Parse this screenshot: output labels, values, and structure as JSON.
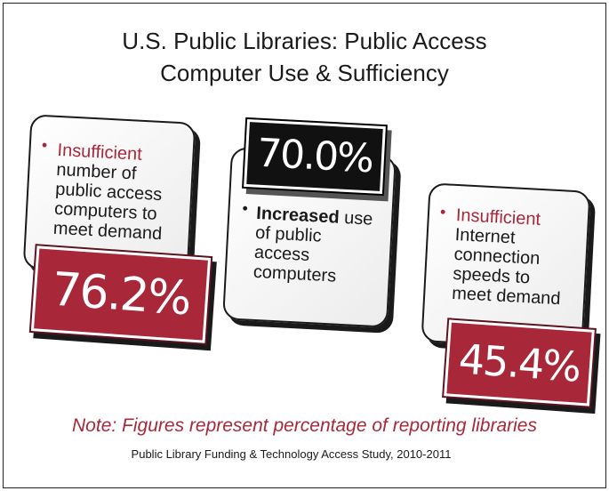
{
  "title": {
    "line1": "U.S. Public Libraries: Public Access",
    "line2": "Computer Use & Sufficiency"
  },
  "cards": [
    {
      "bullet": "•",
      "highlight": "Insufficient",
      "lines": [
        "number of",
        "public access",
        "computers to",
        "meet demand"
      ],
      "stat": "76.2%"
    },
    {
      "bullet": "•",
      "highlight": "Increased",
      "highlight_rest": " use",
      "lines": [
        "of public",
        "access",
        "computers"
      ],
      "stat": "70.0%"
    },
    {
      "bullet": "•",
      "highlight": "Insufficient",
      "lines": [
        "Internet",
        "connection",
        "speeds to",
        "meet demand"
      ],
      "stat": "45.4%"
    }
  ],
  "note": "Note: Figures represent percentage of reporting libraries",
  "source": "Public Library Funding & Technology Access Study, 2010-2011",
  "colors": {
    "accent_red": "#a8283a",
    "black": "#111111",
    "card_bg": "#ececec"
  }
}
